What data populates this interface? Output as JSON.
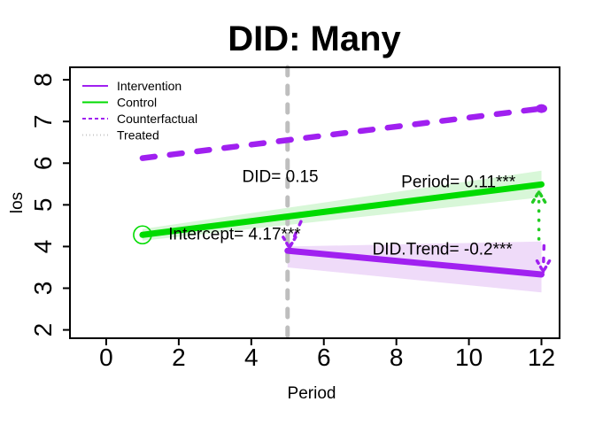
{
  "title": "DID: Many",
  "axes": {
    "xlabel": "Period",
    "ylabel": "los"
  },
  "legend": {
    "position": "top-left",
    "items": [
      {
        "label": "Intervention",
        "color": "#A020F0",
        "style": "solid"
      },
      {
        "label": "Control",
        "color": "#00DB00",
        "style": "solid"
      },
      {
        "label": "Counterfactual",
        "color": "#A020F0",
        "style": "dashed"
      },
      {
        "label": "Treated",
        "color": "#C8C8C8",
        "style": "dotted"
      }
    ]
  },
  "chart_data": {
    "type": "line",
    "title": "DID: Many",
    "xlabel": "Period",
    "ylabel": "los",
    "xlim": [
      -1.0,
      12.5
    ],
    "ylim": [
      1.8,
      8.3
    ],
    "xticks": [
      0,
      2,
      4,
      6,
      8,
      10,
      12
    ],
    "yticks": [
      2,
      3,
      4,
      5,
      6,
      7,
      8
    ],
    "grid": false,
    "legend_position": "top-left",
    "vline": {
      "x": 5,
      "color": "#BEBEBE",
      "style": "dashed",
      "width": 5
    },
    "series": [
      {
        "name": "Counterfactual",
        "color": "#A020F0",
        "style": "longdash",
        "width": 6.5,
        "x": [
          1,
          12
        ],
        "y": [
          6.12,
          7.31
        ],
        "end_dot": true
      },
      {
        "name": "Control",
        "color": "#00DB00",
        "style": "solid",
        "width": 7,
        "x": [
          1,
          12
        ],
        "y": [
          4.28,
          5.49
        ],
        "start_circle": true,
        "band": {
          "color": "#D8F7D8",
          "x": [
            1,
            12
          ],
          "upper": [
            4.42,
            5.82
          ],
          "lower": [
            4.14,
            5.18
          ]
        }
      },
      {
        "name": "Intervention",
        "color": "#A020F0",
        "style": "solid",
        "width": 7,
        "x": [
          5,
          12
        ],
        "y": [
          3.9,
          3.33
        ],
        "band": {
          "color": "#EFDBF9",
          "x": [
            5,
            12
          ],
          "upper": [
            4.0,
            4.12
          ],
          "lower": [
            3.5,
            2.9
          ]
        }
      }
    ],
    "arrows": [
      {
        "name": "effect-arrow-green-up",
        "color": "#22CC22",
        "style": "dotted",
        "width": 3.5,
        "x_from": 11.93,
        "y_from": 4.18,
        "x_to": 11.93,
        "y_to": 5.32,
        "head": "up"
      },
      {
        "name": "effect-arrow-purple-down",
        "color": "#A020F0",
        "style": "dashed",
        "width": 3.5,
        "x_from": 12.07,
        "y_from": 4.02,
        "x_to": 12.05,
        "y_to": 3.4,
        "head": "down"
      },
      {
        "name": "did-jump-arrow",
        "color": "#A020F0",
        "style": "dashed",
        "width": 3.5,
        "x_from": 5.37,
        "y_from": 4.6,
        "x_to": 5.05,
        "y_to": 3.97,
        "head": "down"
      }
    ],
    "annotations": [
      {
        "name": "annotation-did",
        "text": "DID= 0.15",
        "x": 4.8,
        "y": 5.68
      },
      {
        "name": "annotation-intercept",
        "text": "Intercept= 4.17***",
        "x": 3.54,
        "y": 4.3
      },
      {
        "name": "annotation-period",
        "text": "Period= 0.11***",
        "x": 9.71,
        "y": 5.55
      },
      {
        "name": "annotation-did-trend",
        "text": "DID.Trend= -0.2***",
        "x": 9.27,
        "y": 3.93
      }
    ],
    "stats": {
      "Intercept": 4.17,
      "Period": 0.11,
      "DID": 0.15,
      "DID.Trend": -0.2
    }
  }
}
